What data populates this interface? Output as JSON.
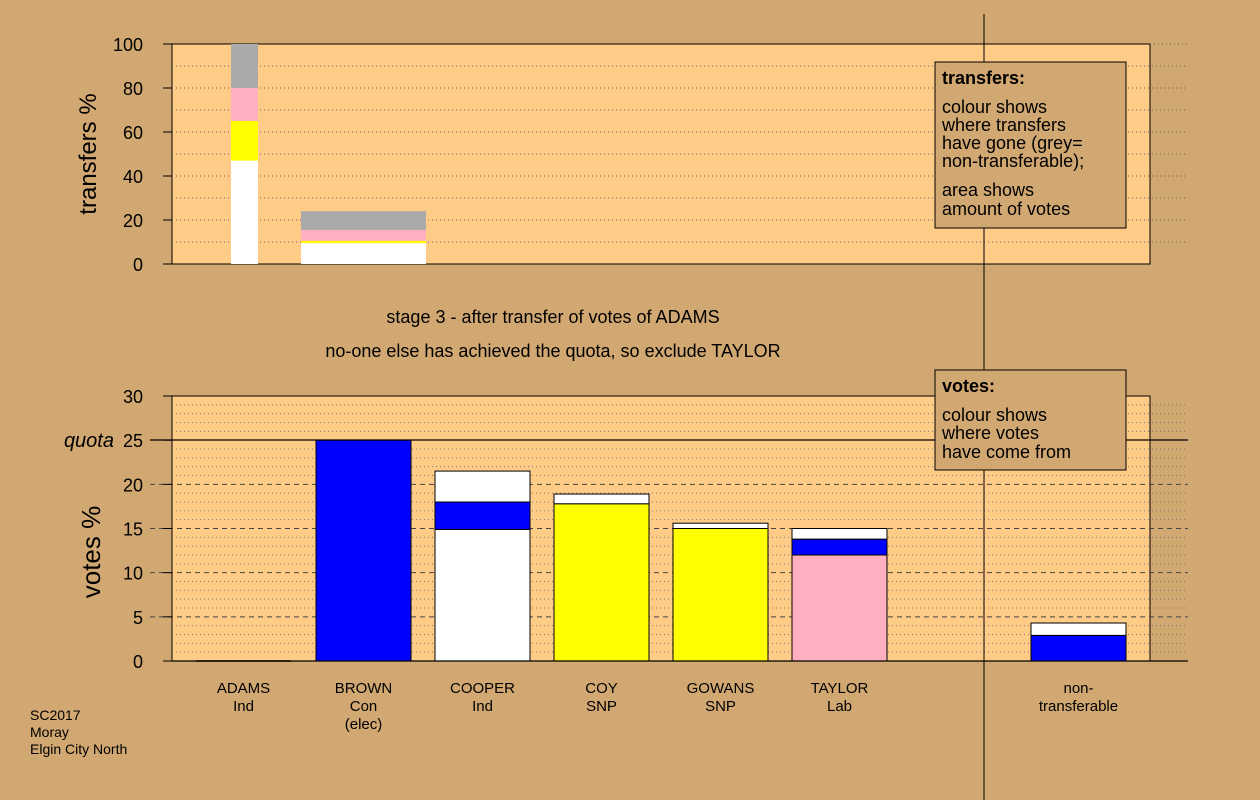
{
  "colors": {
    "background": "#d2a872",
    "plot_background": "#ffcc88",
    "legend_background": "#d2a872",
    "white": "#ffffff",
    "blue": "#0000ff",
    "yellow": "#ffff00",
    "pink": "#ffb0c0",
    "grey": "#aaaaaa"
  },
  "chart_data": [
    {
      "type": "bar",
      "name": "transfers",
      "ylabel": "transfers %",
      "ylim": [
        0,
        100
      ],
      "yticks": [
        0,
        20,
        40,
        60,
        80,
        100
      ],
      "categories": [
        "ADAMS",
        "BROWN"
      ],
      "bars": [
        {
          "category": "ADAMS",
          "segments": [
            {
              "color": "white",
              "value": 47
            },
            {
              "color": "yellow",
              "value": 18
            },
            {
              "color": "pink",
              "value": 15
            },
            {
              "color": "grey",
              "value": 20
            }
          ]
        },
        {
          "category": "BROWN",
          "segments": [
            {
              "color": "white",
              "value": 9.5
            },
            {
              "color": "yellow",
              "value": 1
            },
            {
              "color": "pink",
              "value": 5
            },
            {
              "color": "grey",
              "value": 8.5
            }
          ]
        }
      ],
      "legend": {
        "title": "transfers:",
        "lines1": [
          "colour shows",
          "where transfers",
          "have gone (grey=",
          "non-transferable);"
        ],
        "lines2": [
          "area shows",
          "amount of votes"
        ]
      }
    },
    {
      "type": "bar",
      "name": "votes",
      "ylabel": "votes %",
      "ylim": [
        0,
        30
      ],
      "yticks": [
        0,
        5,
        10,
        15,
        20,
        25,
        30
      ],
      "quota": 25,
      "quota_label": "quota",
      "categories": [
        {
          "name": "ADAMS",
          "party": "Ind",
          "extra": ""
        },
        {
          "name": "BROWN",
          "party": "Con",
          "extra": "(elec)"
        },
        {
          "name": "COOPER",
          "party": "Ind",
          "extra": ""
        },
        {
          "name": "COY",
          "party": "SNP",
          "extra": ""
        },
        {
          "name": "GOWANS",
          "party": "SNP",
          "extra": ""
        },
        {
          "name": "TAYLOR",
          "party": "Lab",
          "extra": ""
        },
        {
          "name": "non-",
          "party": "transferable",
          "extra": ""
        }
      ],
      "bars": [
        {
          "category": "ADAMS",
          "segments": []
        },
        {
          "category": "BROWN",
          "segments": [
            {
              "color": "blue",
              "value": 25
            }
          ]
        },
        {
          "category": "COOPER",
          "segments": [
            {
              "color": "white",
              "value": 14.9
            },
            {
              "color": "blue",
              "value": 3.1
            },
            {
              "color": "white",
              "value": 3.5
            }
          ]
        },
        {
          "category": "COY",
          "segments": [
            {
              "color": "yellow",
              "value": 17.8
            },
            {
              "color": "white",
              "value": 1.1
            }
          ]
        },
        {
          "category": "GOWANS",
          "segments": [
            {
              "color": "yellow",
              "value": 15.0
            },
            {
              "color": "white",
              "value": 0.6
            }
          ]
        },
        {
          "category": "TAYLOR",
          "segments": [
            {
              "color": "pink",
              "value": 12.0
            },
            {
              "color": "blue",
              "value": 1.8
            },
            {
              "color": "white",
              "value": 1.2
            }
          ]
        },
        {
          "category": "non-transferable",
          "segments": [
            {
              "color": "blue",
              "value": 2.9
            },
            {
              "color": "white",
              "value": 1.4
            }
          ]
        }
      ],
      "legend": {
        "title": "votes:",
        "lines1": [
          "colour shows",
          "where votes",
          "have come from"
        ]
      }
    }
  ],
  "stage_text": "stage 3 - after transfer of votes of ADAMS",
  "exclude_text": "no-one else has achieved the quota, so exclude TAYLOR",
  "footer": [
    "SC2017",
    "Moray",
    "Elgin City North"
  ]
}
